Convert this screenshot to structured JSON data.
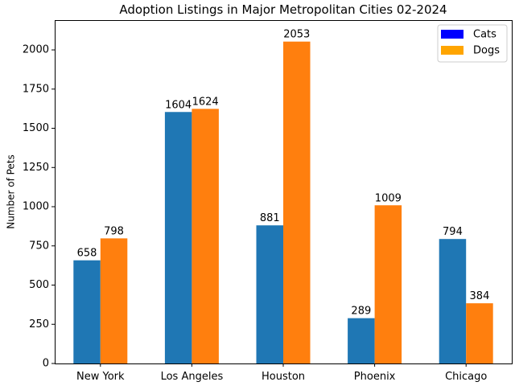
{
  "chart_data": {
    "type": "bar",
    "title": "Adoption Listings in Major Metropolitan Cities 02-2024",
    "xlabel": "",
    "ylabel": "Number of Pets",
    "categories": [
      "New York",
      "Los Angeles",
      "Houston",
      "Phoenix",
      "Chicago"
    ],
    "series": [
      {
        "name": "Cats",
        "values": [
          658,
          1604,
          881,
          289,
          794
        ],
        "color": "#1f77b4",
        "legend_color": "#0000ff"
      },
      {
        "name": "Dogs",
        "values": [
          798,
          1624,
          2053,
          1009,
          384
        ],
        "color": "#ff7f0e",
        "legend_color": "#ffa500"
      }
    ],
    "ylim": [
      0,
      2190
    ],
    "yticks": [
      0,
      250,
      500,
      750,
      1000,
      1250,
      1500,
      1750,
      2000
    ],
    "grid": false,
    "legend_position": "top-right"
  }
}
